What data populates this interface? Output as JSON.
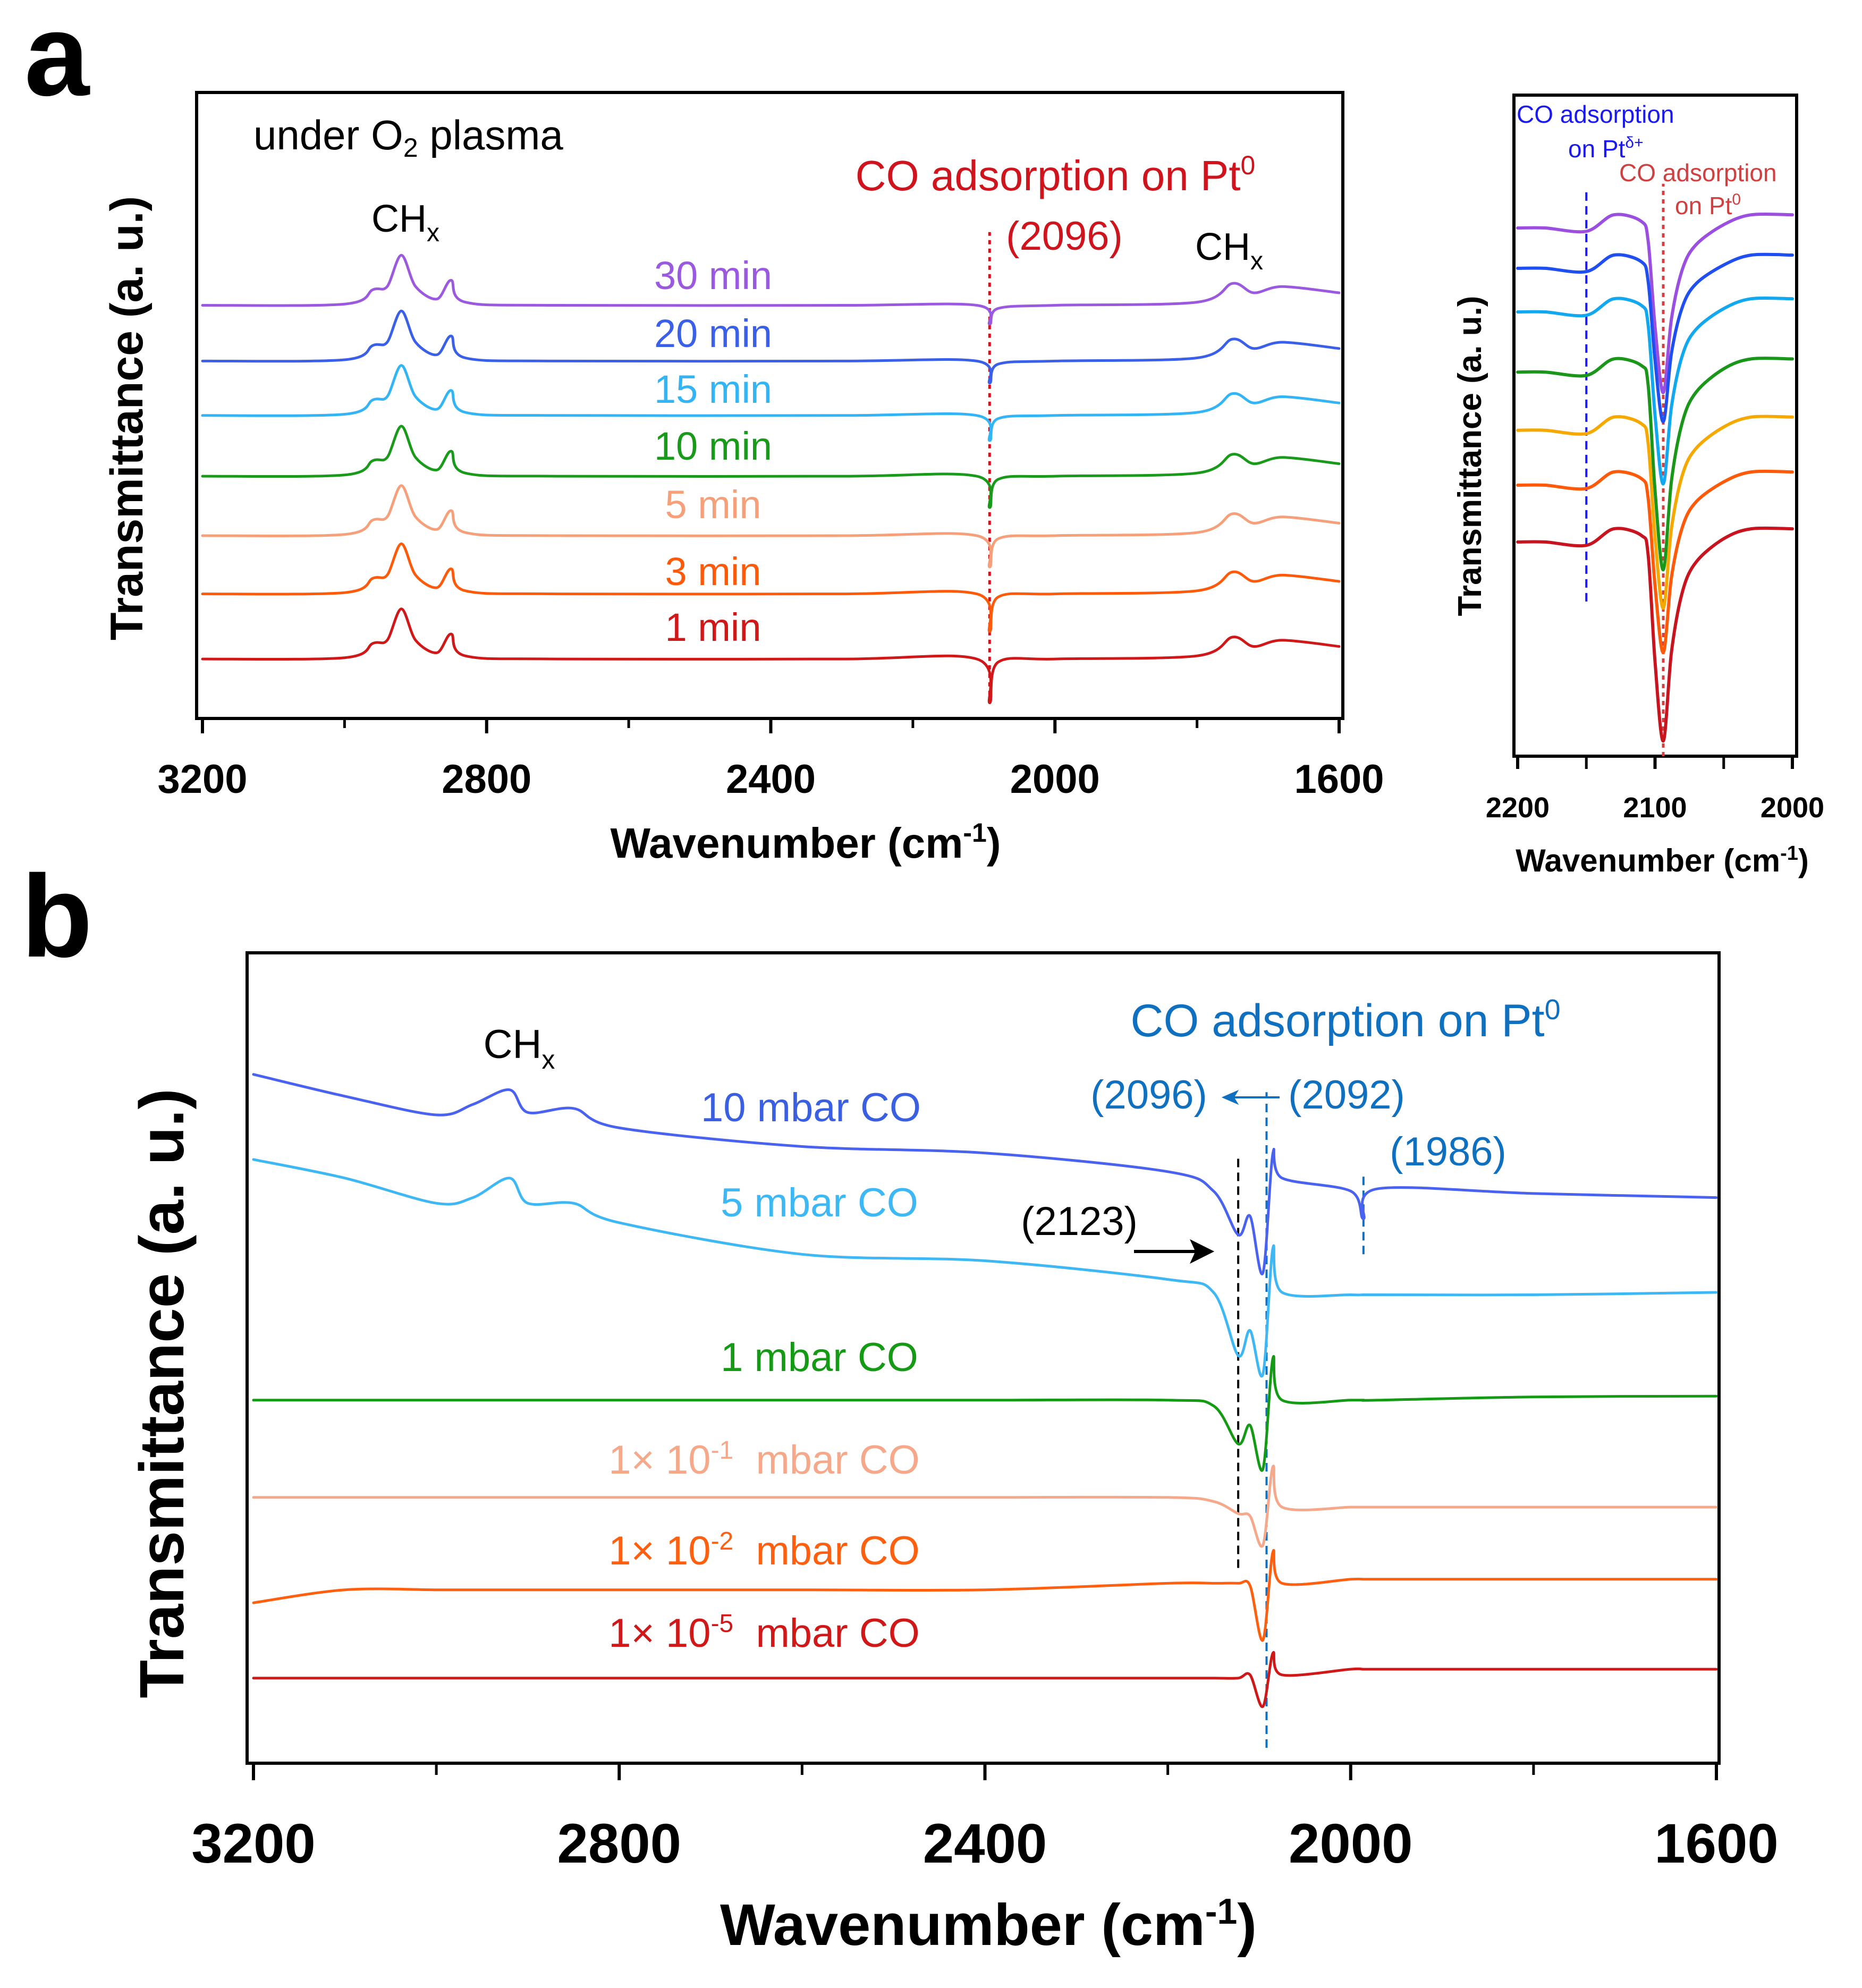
{
  "panel_letters": {
    "a": "a",
    "b": "b"
  },
  "colors": {
    "red_annot": "#D0141E",
    "inset_blue": "#1A1AF0",
    "inset_red": "#D04040",
    "b_blue": "#1070C0"
  },
  "chart_data": [
    {
      "id": "a-main",
      "type": "line",
      "xlabel": "Wavenumber (cm",
      "xlabel_sup": "-1",
      "xlabel_end": ")",
      "ylabel": "Transmittance (a. u.)",
      "xlim": [
        3200,
        1600
      ],
      "ylim": [
        0,
        10
      ],
      "x_reversed": true,
      "xticks": [
        3200,
        2800,
        2400,
        2000,
        1600
      ],
      "xminor": [
        3000,
        2600,
        2200,
        1800
      ],
      "grid": false,
      "annotations": {
        "condition": "under O",
        "condition_sub": "2",
        "condition_end": " plasma",
        "co_title": "CO adsorption on Pt",
        "co_title_sup": "0",
        "co_peak": "(2096)",
        "chx_left": "CH",
        "chx_left_sub": "x",
        "chx_right": "CH",
        "chx_right_sub": "x"
      },
      "ref_lines": [
        {
          "x": 2092,
          "y": [
            0.24,
            7.77
          ],
          "color": "#D0141E",
          "style": "dotted"
        }
      ],
      "x": [
        3200,
        3000,
        2960,
        2940,
        2920,
        2900,
        2870,
        2850,
        2830,
        2700,
        2300,
        2110,
        2092,
        2080,
        2000,
        1800,
        1750,
        1720,
        1680,
        1600
      ],
      "series": [
        {
          "name": "30 min",
          "color": "#9B59E0",
          "y": [
            6.6,
            6.62,
            6.85,
            6.9,
            7.4,
            6.9,
            6.7,
            7.0,
            6.65,
            6.6,
            6.6,
            6.6,
            6.3,
            6.55,
            6.6,
            6.65,
            6.95,
            6.8,
            6.9,
            6.8
          ]
        },
        {
          "name": "20 min",
          "color": "#3A5FE8",
          "y": [
            5.71,
            5.73,
            5.96,
            6.01,
            6.51,
            6.01,
            5.81,
            6.11,
            5.76,
            5.71,
            5.71,
            5.71,
            5.36,
            5.66,
            5.71,
            5.76,
            6.06,
            5.91,
            6.01,
            5.91
          ]
        },
        {
          "name": "15 min",
          "color": "#33B5F5",
          "y": [
            4.84,
            4.86,
            5.09,
            5.14,
            5.64,
            5.14,
            4.94,
            5.24,
            4.89,
            4.84,
            4.84,
            4.84,
            4.44,
            4.79,
            4.84,
            4.89,
            5.19,
            5.04,
            5.14,
            5.04
          ]
        },
        {
          "name": "10 min",
          "color": "#1A9A1A",
          "y": [
            3.87,
            3.89,
            4.12,
            4.17,
            4.67,
            4.17,
            3.97,
            4.27,
            3.92,
            3.87,
            3.87,
            3.87,
            3.37,
            3.82,
            3.87,
            3.92,
            4.22,
            4.07,
            4.17,
            4.07
          ]
        },
        {
          "name": "5 min",
          "color": "#F5A07A",
          "y": [
            2.92,
            2.94,
            3.17,
            3.22,
            3.72,
            3.22,
            3.02,
            3.32,
            2.97,
            2.92,
            2.92,
            2.92,
            2.42,
            2.87,
            2.92,
            2.97,
            3.27,
            3.12,
            3.22,
            3.12
          ]
        },
        {
          "name": "3 min",
          "color": "#FF5A0A",
          "y": [
            1.99,
            2.01,
            2.24,
            2.29,
            2.79,
            2.29,
            2.09,
            2.39,
            2.04,
            1.99,
            1.99,
            1.99,
            1.39,
            1.94,
            1.99,
            2.04,
            2.34,
            2.19,
            2.29,
            2.19
          ]
        },
        {
          "name": "1 min",
          "color": "#D01818",
          "y": [
            0.95,
            0.97,
            1.2,
            1.25,
            1.75,
            1.25,
            1.05,
            1.35,
            1.0,
            0.95,
            0.95,
            0.95,
            0.25,
            0.9,
            0.95,
            1.0,
            1.3,
            1.15,
            1.25,
            1.15
          ]
        }
      ]
    },
    {
      "id": "a-inset",
      "type": "line",
      "xlabel": "Wavenumber (cm",
      "xlabel_sup": "-1",
      "xlabel_end": ")",
      "ylabel": "Transmittance (a. u.)",
      "xlim": [
        2200,
        2000
      ],
      "ylim": [
        0,
        10
      ],
      "x_reversed": true,
      "xticks": [
        2200,
        2100,
        2000
      ],
      "xminor": [
        2150,
        2050
      ],
      "grid": false,
      "annotations": {
        "pt_delta_1": "CO adsorption",
        "pt_delta_2": "on Pt",
        "pt_delta_sup": "δ+",
        "pt0_1": "CO adsorption",
        "pt0_2": "on Pt",
        "pt0_sup": "0"
      },
      "ref_lines": [
        {
          "x": 2150,
          "y": [
            2.34,
            8.56
          ],
          "color": "#1A1AF0",
          "style": "dashed"
        },
        {
          "x": 2094,
          "y": [
            0,
            8.66
          ],
          "color": "#D04040",
          "style": "dotted"
        }
      ],
      "x": [
        2200,
        2180,
        2150,
        2130,
        2110,
        2105,
        2100,
        2094,
        2088,
        2080,
        2070,
        2050,
        2030,
        2000
      ],
      "series": [
        {
          "color": "#9B4FE0",
          "y": [
            7.99,
            7.99,
            7.94,
            8.19,
            8.09,
            7.79,
            6.5,
            5.5,
            6.62,
            7.37,
            7.74,
            8.04,
            8.19,
            8.19
          ]
        },
        {
          "color": "#1F4FF0",
          "y": [
            7.38,
            7.38,
            7.33,
            7.58,
            7.48,
            7.18,
            5.99,
            5.06,
            6.1,
            6.8,
            7.15,
            7.43,
            7.58,
            7.58
          ]
        },
        {
          "color": "#12A8F0",
          "y": [
            6.72,
            6.72,
            6.67,
            6.92,
            6.82,
            6.52,
            5.16,
            4.12,
            5.29,
            6.07,
            6.46,
            6.77,
            6.92,
            6.92
          ]
        },
        {
          "color": "#1A961A",
          "y": [
            5.81,
            5.81,
            5.76,
            6.01,
            5.91,
            5.61,
            4.02,
            2.82,
            4.17,
            5.06,
            5.51,
            5.86,
            6.01,
            6.01
          ]
        },
        {
          "color": "#F5A800",
          "y": [
            4.93,
            4.93,
            4.88,
            5.13,
            5.03,
            4.73,
            3.32,
            2.24,
            3.45,
            4.26,
            4.66,
            4.98,
            5.13,
            5.13
          ]
        },
        {
          "color": "#FF5A0A",
          "y": [
            4.1,
            4.1,
            4.05,
            4.3,
            4.2,
            3.9,
            2.58,
            1.57,
            2.71,
            3.47,
            3.85,
            4.15,
            4.3,
            4.3
          ]
        },
        {
          "color": "#C8141E",
          "y": [
            3.24,
            3.24,
            3.19,
            3.44,
            3.34,
            3.04,
            1.43,
            0.23,
            1.58,
            2.49,
            2.94,
            3.29,
            3.44,
            3.44
          ]
        }
      ]
    },
    {
      "id": "b-main",
      "type": "line",
      "xlabel": "Wavenumber (cm",
      "xlabel_sup": "-1",
      "xlabel_end": ")",
      "ylabel": "Transmittance (a. u.)",
      "xlim": [
        3200,
        1600
      ],
      "ylim": [
        0,
        10
      ],
      "x_reversed": true,
      "xticks": [
        3200,
        2800,
        2400,
        2000,
        1600
      ],
      "xminor": [
        3000,
        2600,
        2200,
        1800
      ],
      "grid": false,
      "annotations": {
        "chx": "CH",
        "chx_sub": "x",
        "co_title": "CO adsorption on Pt",
        "co_title_sup": "0",
        "p2096": "(2096)",
        "p2092": "(2092)",
        "p1986": "(1986)",
        "p2123": "(2123)"
      },
      "ref_lines": [
        {
          "x": 2123,
          "y": [
            2.41,
            7.5
          ],
          "color": "#000000",
          "style": "dashed"
        },
        {
          "x": 2092,
          "y": [
            0.19,
            8.28
          ],
          "color": "#1070C0",
          "style": "dashed"
        },
        {
          "x": 1986,
          "y": [
            6.28,
            7.3
          ],
          "color": "#1070C0",
          "style": "dashed"
        }
      ],
      "x": [
        3200,
        3100,
        3000,
        2960,
        2920,
        2900,
        2850,
        2800,
        2600,
        2400,
        2200,
        2150,
        2123,
        2110,
        2096,
        2085,
        2075,
        2000,
        1986,
        1970,
        1800,
        1600
      ],
      "series": [
        {
          "name": "10 mbar CO",
          "color": "#4A62F0",
          "y": [
            8.5,
            8.23,
            8.0,
            8.13,
            8.31,
            8.03,
            8.08,
            7.84,
            7.61,
            7.53,
            7.3,
            7.06,
            6.52,
            6.75,
            6.05,
            7.53,
            7.22,
            7.06,
            6.72,
            7.09,
            7.03,
            6.98
          ]
        },
        {
          "name": "5 mbar CO",
          "color": "#3DB8F5",
          "y": [
            7.45,
            7.22,
            6.91,
            6.98,
            7.22,
            6.91,
            6.91,
            6.67,
            6.28,
            6.2,
            5.97,
            5.81,
            5.03,
            5.34,
            4.8,
            6.36,
            5.81,
            5.78,
            5.78,
            5.78,
            5.78,
            5.81
          ]
        },
        {
          "name": "1 mbar CO",
          "color": "#159A15",
          "y": [
            4.48,
            4.48,
            4.48,
            4.48,
            4.48,
            4.48,
            4.48,
            4.48,
            4.48,
            4.48,
            4.48,
            4.41,
            3.94,
            4.17,
            3.63,
            5.0,
            4.48,
            4.48,
            4.48,
            4.48,
            4.52,
            4.53
          ]
        },
        {
          "name": "1× 10",
          "name_sup": "-1",
          "name_end": "  mbar CO",
          "color": "#F5A88A",
          "y": [
            3.28,
            3.28,
            3.28,
            3.28,
            3.28,
            3.28,
            3.28,
            3.28,
            3.28,
            3.28,
            3.28,
            3.23,
            3.08,
            3.05,
            2.69,
            3.66,
            3.16,
            3.16,
            3.16,
            3.16,
            3.16,
            3.16
          ]
        },
        {
          "name": "1× 10",
          "name_sup": "-2",
          "name_end": "  mbar CO",
          "color": "#FF6010",
          "y": [
            1.98,
            2.14,
            2.14,
            2.14,
            2.14,
            2.14,
            2.14,
            2.14,
            2.14,
            2.14,
            2.22,
            2.22,
            2.22,
            2.19,
            1.52,
            2.61,
            2.22,
            2.27,
            2.27,
            2.27,
            2.27,
            2.27
          ]
        },
        {
          "name": "1× 10",
          "name_sup": "-5",
          "name_end": "  mbar CO",
          "color": "#D01818",
          "y": [
            1.05,
            1.05,
            1.05,
            1.05,
            1.05,
            1.05,
            1.05,
            1.05,
            1.05,
            1.05,
            1.05,
            1.05,
            1.05,
            1.09,
            0.7,
            1.36,
            1.09,
            1.16,
            1.16,
            1.16,
            1.16,
            1.16
          ]
        }
      ]
    }
  ]
}
